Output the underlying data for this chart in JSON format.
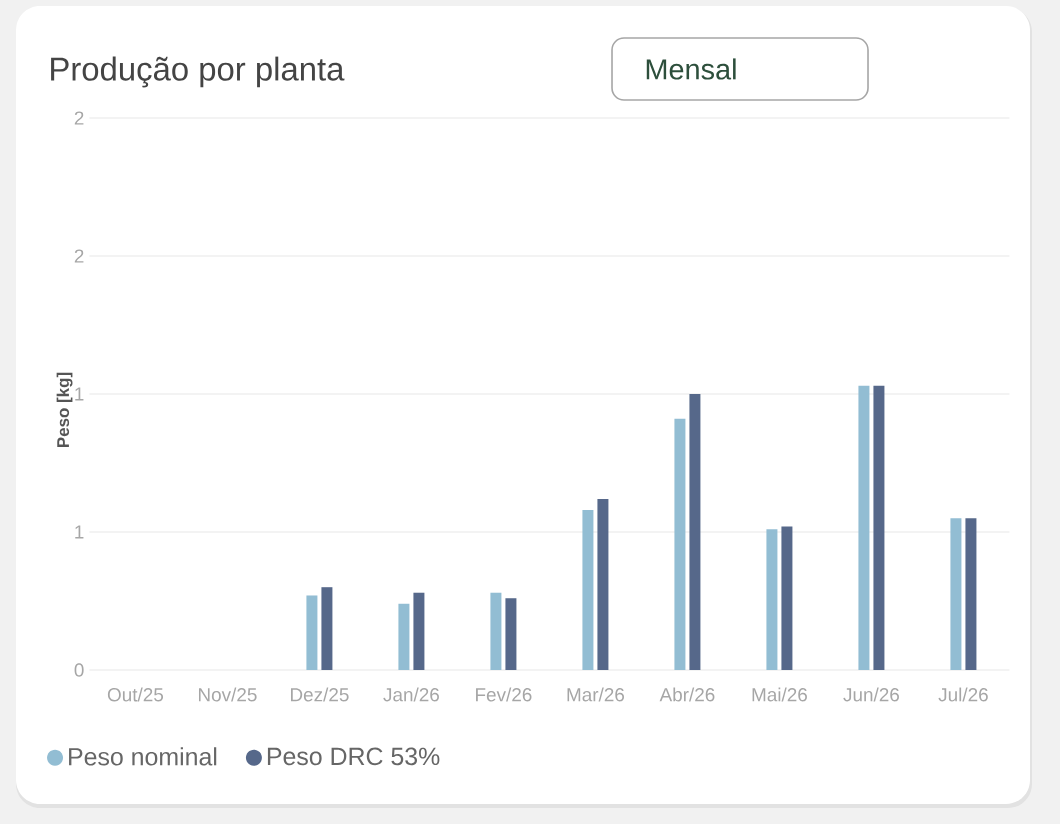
{
  "chart_data": {
    "type": "bar",
    "title": "Produção por planta",
    "ylabel": "Peso [kg]",
    "annotations": [
      "Mensal"
    ],
    "categories": [
      "Out/25",
      "Nov/25",
      "Dez/25",
      "Jan/26",
      "Fev/26",
      "Mar/26",
      "Abr/26",
      "Mai/26",
      "Jun/26",
      "Jul/26"
    ],
    "series": [
      {
        "name": "Peso nominal",
        "color": "#92bdd3",
        "values": [
          null,
          null,
          0.27,
          0.24,
          0.28,
          0.58,
          0.91,
          0.51,
          1.03,
          0.55
        ]
      },
      {
        "name": "Peso DRC 53%",
        "color": "#56688a",
        "values": [
          null,
          null,
          0.3,
          0.28,
          0.26,
          0.62,
          1.0,
          0.52,
          1.03,
          0.55
        ]
      }
    ],
    "ylim": [
      0,
      2
    ],
    "yticks": [
      0,
      {
        "value": 0.5,
        "label": "1"
      },
      1,
      {
        "value": 1.5,
        "label": "2"
      },
      2
    ],
    "grid": "y",
    "legend": "bottom left"
  }
}
